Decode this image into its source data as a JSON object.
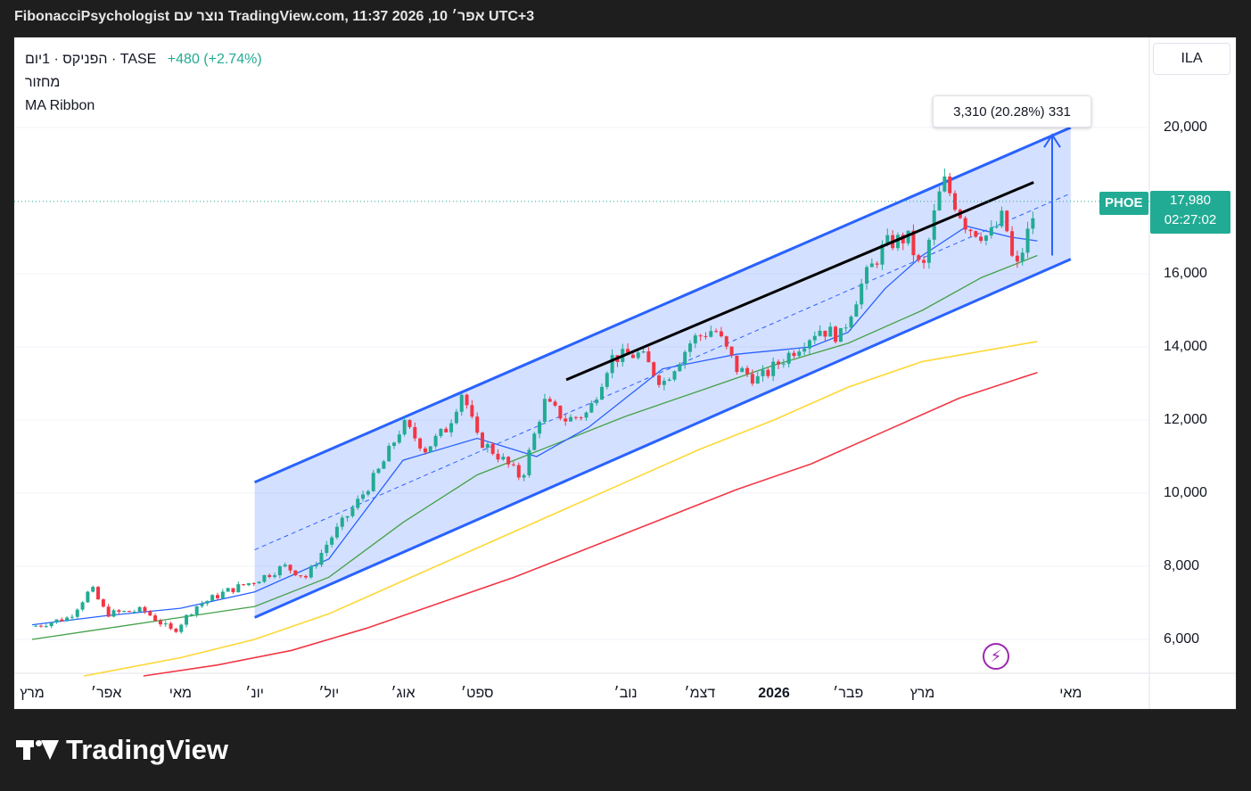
{
  "header": {
    "title": "FibonacciPsychologist נוצר עם TradingView.com, 11:37 2026 ,10 אפר׳ UTC+3"
  },
  "legend": {
    "symbol": "הפניקס · 1יום · TASE",
    "change": "+480 (+2.74%)",
    "volume_label": "מחזור",
    "indicator": "MA Ribbon"
  },
  "currency": "ILA",
  "price_badge": {
    "ticker": "PHOE",
    "price": "17,980",
    "countdown": "02:27:02"
  },
  "measure_label": "3,310 (20.28%) 331",
  "logo_text": "TradingView",
  "colors": {
    "up": "#22ab94",
    "down": "#f23645",
    "channel": "#2962ff",
    "ma_short": "#2962ff",
    "ma_mid": "#43a047",
    "ma_long1": "#fdd835",
    "ma_long2": "#f23645"
  },
  "chart_data": {
    "type": "candlestick",
    "y_ticks": [
      "20,000",
      "16,000",
      "14,000",
      "12,000",
      "10,000",
      "8,000",
      "6,000"
    ],
    "y_tick_values": [
      20000,
      16000,
      14000,
      12000,
      10000,
      8000,
      6000
    ],
    "x_ticks": [
      "מרץ",
      "אפר׳",
      "מאי",
      "יונ׳",
      "יול׳",
      "אוג׳",
      "ספט׳",
      "נוב׳",
      "דצמ׳",
      "2026",
      "פבר׳",
      "מרץ",
      "מאי"
    ],
    "close_path": [
      {
        "m": 0,
        "v": 6350
      },
      {
        "m": 0.5,
        "v": 6600
      },
      {
        "m": 0.8,
        "v": 7400
      },
      {
        "m": 1,
        "v": 6700
      },
      {
        "m": 1.5,
        "v": 6800
      },
      {
        "m": 1.9,
        "v": 6200
      },
      {
        "m": 2.2,
        "v": 6900
      },
      {
        "m": 2.6,
        "v": 7300
      },
      {
        "m": 3,
        "v": 7600
      },
      {
        "m": 3.4,
        "v": 8000
      },
      {
        "m": 3.7,
        "v": 7700
      },
      {
        "m": 4,
        "v": 8700
      },
      {
        "m": 4.4,
        "v": 9800
      },
      {
        "m": 4.7,
        "v": 10700
      },
      {
        "m": 5,
        "v": 11900
      },
      {
        "m": 5.3,
        "v": 11200
      },
      {
        "m": 5.6,
        "v": 11800
      },
      {
        "m": 5.8,
        "v": 12800
      },
      {
        "m": 6,
        "v": 11500
      },
      {
        "m": 6.3,
        "v": 11000
      },
      {
        "m": 6.6,
        "v": 10400
      },
      {
        "m": 6.9,
        "v": 12500
      },
      {
        "m": 7.2,
        "v": 12000
      },
      {
        "m": 7.5,
        "v": 12200
      },
      {
        "m": 7.8,
        "v": 13700
      },
      {
        "m": 8.2,
        "v": 13800
      },
      {
        "m": 8.5,
        "v": 13000
      },
      {
        "m": 8.9,
        "v": 14200
      },
      {
        "m": 9.2,
        "v": 14500
      },
      {
        "m": 9.5,
        "v": 13400
      },
      {
        "m": 9.8,
        "v": 13100
      },
      {
        "m": 10.2,
        "v": 13800
      },
      {
        "m": 10.6,
        "v": 14500
      },
      {
        "m": 10.9,
        "v": 14300
      },
      {
        "m": 11.2,
        "v": 15800
      },
      {
        "m": 11.5,
        "v": 16800
      },
      {
        "m": 11.8,
        "v": 17000
      },
      {
        "m": 12,
        "v": 16000
      },
      {
        "m": 12.2,
        "v": 18000
      },
      {
        "m": 12.3,
        "v": 18500
      },
      {
        "m": 12.6,
        "v": 17300
      },
      {
        "m": 12.9,
        "v": 17000
      },
      {
        "m": 13.1,
        "v": 17600
      },
      {
        "m": 13.25,
        "v": 16000
      },
      {
        "m": 13.45,
        "v": 17300
      },
      {
        "m": 13.55,
        "v": 17980
      }
    ],
    "ma_short": [
      {
        "m": 0,
        "v": 6400
      },
      {
        "m": 1,
        "v": 6650
      },
      {
        "m": 2,
        "v": 6850
      },
      {
        "m": 3,
        "v": 7300
      },
      {
        "m": 4,
        "v": 8200
      },
      {
        "m": 5,
        "v": 10900
      },
      {
        "m": 6,
        "v": 11500
      },
      {
        "m": 6.8,
        "v": 11000
      },
      {
        "m": 7.5,
        "v": 11800
      },
      {
        "m": 8.5,
        "v": 13400
      },
      {
        "m": 9.5,
        "v": 13800
      },
      {
        "m": 10.5,
        "v": 14000
      },
      {
        "m": 11,
        "v": 14400
      },
      {
        "m": 11.5,
        "v": 15600
      },
      {
        "m": 12,
        "v": 16500
      },
      {
        "m": 12.6,
        "v": 17300
      },
      {
        "m": 13.2,
        "v": 17000
      },
      {
        "m": 13.55,
        "v": 16900
      }
    ],
    "ma_mid": [
      {
        "m": 0,
        "v": 6000
      },
      {
        "m": 1,
        "v": 6300
      },
      {
        "m": 2,
        "v": 6600
      },
      {
        "m": 3,
        "v": 6900
      },
      {
        "m": 4,
        "v": 7700
      },
      {
        "m": 5,
        "v": 9200
      },
      {
        "m": 6,
        "v": 10500
      },
      {
        "m": 7,
        "v": 11300
      },
      {
        "m": 8,
        "v": 12100
      },
      {
        "m": 9,
        "v": 12800
      },
      {
        "m": 10,
        "v": 13500
      },
      {
        "m": 11,
        "v": 14100
      },
      {
        "m": 12,
        "v": 15000
      },
      {
        "m": 12.8,
        "v": 15900
      },
      {
        "m": 13.55,
        "v": 16500
      }
    ],
    "ma_long1": [
      {
        "m": 0.7,
        "v": 5000
      },
      {
        "m": 2,
        "v": 5500
      },
      {
        "m": 3,
        "v": 6000
      },
      {
        "m": 4,
        "v": 6700
      },
      {
        "m": 5,
        "v": 7600
      },
      {
        "m": 6,
        "v": 8500
      },
      {
        "m": 7,
        "v": 9400
      },
      {
        "m": 8,
        "v": 10300
      },
      {
        "m": 9,
        "v": 11200
      },
      {
        "m": 10,
        "v": 12000
      },
      {
        "m": 11,
        "v": 12900
      },
      {
        "m": 12,
        "v": 13600
      },
      {
        "m": 13.55,
        "v": 14150
      }
    ],
    "ma_long2": [
      {
        "m": 1.5,
        "v": 5000
      },
      {
        "m": 2.5,
        "v": 5300
      },
      {
        "m": 3.5,
        "v": 5700
      },
      {
        "m": 4.5,
        "v": 6300
      },
      {
        "m": 5.5,
        "v": 7000
      },
      {
        "m": 6.5,
        "v": 7700
      },
      {
        "m": 7.5,
        "v": 8500
      },
      {
        "m": 8.5,
        "v": 9300
      },
      {
        "m": 9.5,
        "v": 10100
      },
      {
        "m": 10.5,
        "v": 10800
      },
      {
        "m": 11.5,
        "v": 11700
      },
      {
        "m": 12.5,
        "v": 12600
      },
      {
        "m": 13.55,
        "v": 13300
      }
    ],
    "channel": {
      "m_start": 3.0,
      "m_end": 14.0,
      "upper_start": 10300,
      "upper_end": 20000,
      "lower_start": 6600,
      "lower_end": 16400
    },
    "resistance_line": {
      "m_start": 7.2,
      "v_start": 13100,
      "m_end": 13.5,
      "v_end": 18500
    },
    "measure_arrow": {
      "m": 13.75,
      "v_from": 16500,
      "v_to": 19800
    },
    "last_price": 17980
  }
}
